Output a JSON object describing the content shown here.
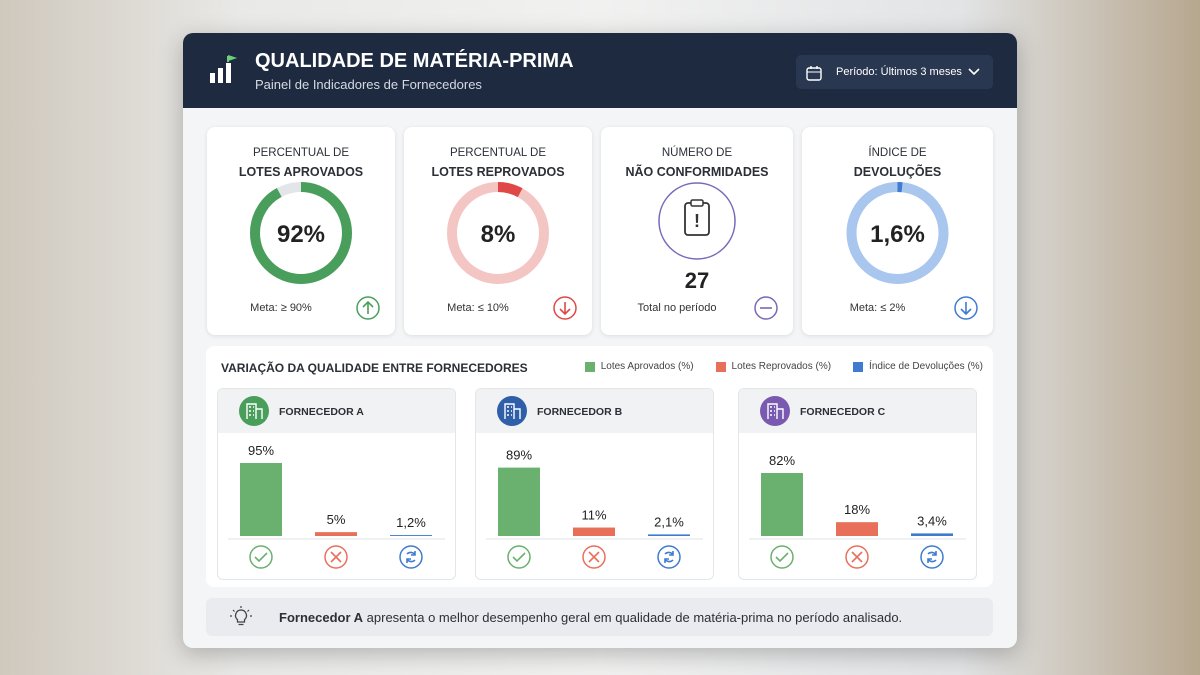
{
  "header": {
    "title": "QUALIDADE DE MATÉRIA-PRIMA",
    "subtitle": "Painel de Indicadores de Fornecedores",
    "period": "Período: Últimos 3 meses"
  },
  "kpis": [
    {
      "line1": "PERCENTUAL DE",
      "line2": "LOTES APROVADOS",
      "type": "gauge",
      "value": 92,
      "value_label": "92%",
      "goal": "Meta: ≥ 90%",
      "color": "#4a9e5c",
      "track": "#e3e6e8"
    },
    {
      "line1": "PERCENTUAL DE",
      "line2": "LOTES REPROVADOS",
      "type": "gauge",
      "value": 8,
      "value_label": "8%",
      "goal": "Meta: ≤ 10%",
      "color": "#e04848",
      "track": "#f3c6c4"
    },
    {
      "line1": "NÚMERO DE",
      "line2": "NÃO CONFORMIDADES",
      "type": "count",
      "value": 27,
      "goal": "Total no período",
      "color": "#7a68b8"
    },
    {
      "line1": "ÍNDICE DE",
      "line2": "DEVOLUÇÕES",
      "type": "gauge",
      "value": 1.6,
      "value_label": "1,6%",
      "goal": "Meta: ≤ 2%",
      "color": "#3f7bd0",
      "track": "#a9c6ee"
    }
  ],
  "chart_data": {
    "type": "bar",
    "title": "VARIAÇÃO DA QUALIDADE ENTRE FORNECEDORES",
    "categories": [
      "FORNECEDOR A",
      "FORNECEDOR B",
      "FORNECEDOR C"
    ],
    "category_colors": [
      "#4a9e5c",
      "#2f5fa8",
      "#7a5ab0"
    ],
    "series": [
      {
        "name": "Lotes Aprovados (%)",
        "color": "#6ab06f",
        "values": [
          95,
          89,
          82
        ],
        "value_labels": [
          "95%",
          "89%",
          "82%"
        ]
      },
      {
        "name": "Lotes Reprovados (%)",
        "color": "#e8705a",
        "values": [
          5,
          11,
          18
        ],
        "value_labels": [
          "5%",
          "11%",
          "18%"
        ]
      },
      {
        "name": "Índice de Devoluções (%)",
        "color": "#3f7bd0",
        "values": [
          1.2,
          2.1,
          3.4
        ],
        "value_labels": [
          "1,2%",
          "2,1%",
          "3,4%"
        ]
      }
    ]
  },
  "insight": {
    "bold": "Fornecedor A",
    "text": "apresenta o melhor desempenho geral em qualidade de matéria-prima no período analisado."
  }
}
